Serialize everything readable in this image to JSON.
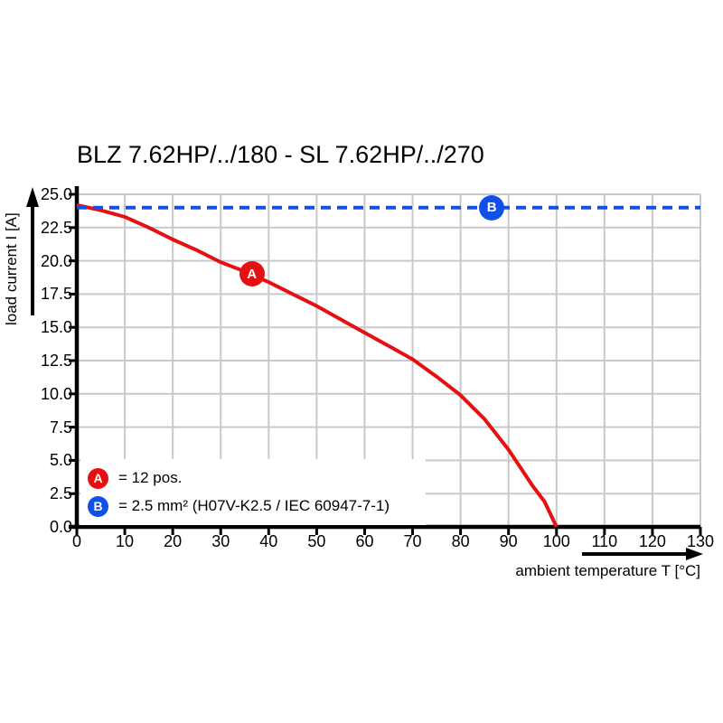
{
  "page": {
    "background": "#ffffff"
  },
  "chart_data": {
    "type": "line",
    "title": "BLZ 7.62HP/../180 - SL 7.62HP/../270",
    "xlabel": "ambient temperature T [°C]",
    "ylabel": "load current I [A]",
    "xlim": [
      0,
      130
    ],
    "ylim": [
      0,
      25
    ],
    "grid": true,
    "colors": {
      "curve_a": "#e60f12",
      "line_b": "#1150e8",
      "grid": "#c9c9c9",
      "axis": "#000000"
    },
    "x_ticks": [
      {
        "value": 0,
        "label": "0"
      },
      {
        "value": 10,
        "label": "10"
      },
      {
        "value": 20,
        "label": "20"
      },
      {
        "value": 30,
        "label": "30"
      },
      {
        "value": 40,
        "label": "40"
      },
      {
        "value": 50,
        "label": "50"
      },
      {
        "value": 60,
        "label": "60"
      },
      {
        "value": 70,
        "label": "70"
      },
      {
        "value": 80,
        "label": "80"
      },
      {
        "value": 90,
        "label": "90"
      },
      {
        "value": 100,
        "label": "100"
      },
      {
        "value": 110,
        "label": "110"
      },
      {
        "value": 120,
        "label": "120"
      },
      {
        "value": 130,
        "label": "130"
      }
    ],
    "y_ticks": [
      {
        "value": 0,
        "label": "0.0"
      },
      {
        "value": 2.5,
        "label": "2.5"
      },
      {
        "value": 5,
        "label": "5.0"
      },
      {
        "value": 7.5,
        "label": "7.5"
      },
      {
        "value": 10,
        "label": "10.0"
      },
      {
        "value": 12.5,
        "label": "12.5"
      },
      {
        "value": 15,
        "label": "15.0"
      },
      {
        "value": 17.5,
        "label": "17.5"
      },
      {
        "value": 20,
        "label": "20.0"
      },
      {
        "value": 22.5,
        "label": "22.5"
      },
      {
        "value": 25,
        "label": "25.0"
      }
    ],
    "series": [
      {
        "id": "A",
        "style": "solid",
        "color_key": "curve_a",
        "x": [
          0,
          5,
          10,
          15,
          20,
          25,
          30,
          35,
          40,
          45,
          50,
          55,
          60,
          65,
          70,
          75,
          80,
          85,
          90,
          95,
          97.5,
          100
        ],
        "y": [
          24.2,
          23.8,
          23.3,
          22.5,
          21.6,
          20.8,
          19.9,
          19.2,
          18.4,
          17.5,
          16.6,
          15.6,
          14.6,
          13.6,
          12.6,
          11.3,
          9.9,
          8.1,
          5.8,
          3.1,
          1.9,
          0
        ],
        "marker": {
          "label": "A",
          "x": 36.5,
          "y": 19.0
        }
      },
      {
        "id": "B",
        "style": "dashed",
        "color_key": "line_b",
        "x": [
          0,
          130
        ],
        "y": [
          24,
          24
        ],
        "marker": {
          "label": "B",
          "x": 86.5,
          "y": 24.0
        }
      }
    ],
    "legend": {
      "items": [
        {
          "symbol": "A",
          "text": "= 12 pos."
        },
        {
          "symbol": "B",
          "text": "= 2.5 mm² (H07V-K2.5 / IEC 60947-7-1)"
        }
      ]
    }
  }
}
